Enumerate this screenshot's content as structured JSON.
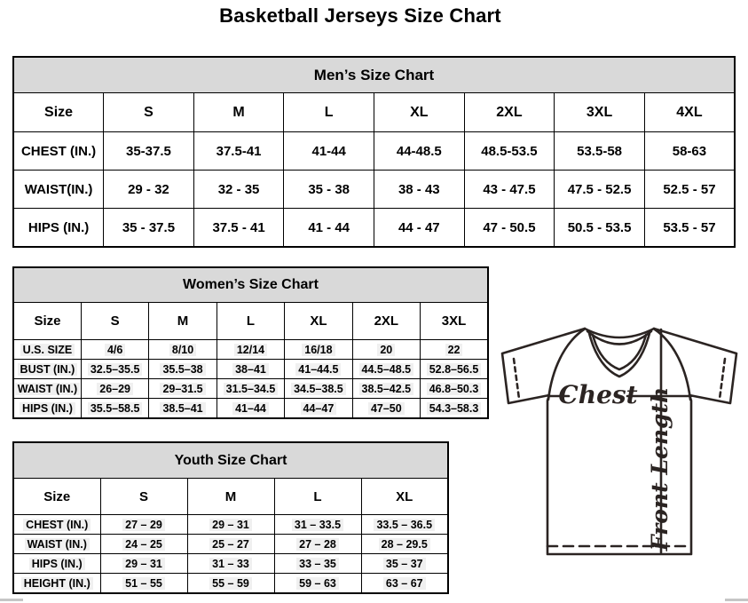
{
  "page": {
    "title": "Basketball Jerseys Size Chart"
  },
  "colors": {
    "header_band": "#d9d9d9",
    "table_border": "#000000",
    "diagram_stroke": "#2b2422",
    "highlight": "#f0f0f0"
  },
  "tables": {
    "mens": {
      "title": "Men’s Size Chart",
      "columns": [
        "Size",
        "S",
        "M",
        "L",
        "XL",
        "2XL",
        "3XL",
        "4XL"
      ],
      "rows": [
        [
          "CHEST (IN.)",
          "35-37.5",
          "37.5-41",
          "41-44",
          "44-48.5",
          "48.5-53.5",
          "53.5-58",
          "58-63"
        ],
        [
          "WAIST(IN.)",
          "29 - 32",
          "32 - 35",
          "35 - 38",
          "38 - 43",
          "43 - 47.5",
          "47.5 - 52.5",
          "52.5 - 57"
        ],
        [
          "HIPS (IN.)",
          "35 - 37.5",
          "37.5 - 41",
          "41 - 44",
          "44 - 47",
          "47 - 50.5",
          "50.5 - 53.5",
          "53.5 - 57"
        ]
      ]
    },
    "womens": {
      "title": "Women’s Size Chart",
      "columns": [
        "Size",
        "S",
        "M",
        "L",
        "XL",
        "2XL",
        "3XL"
      ],
      "rows": [
        [
          "U.S. SIZE",
          "4/6",
          "8/10",
          "12/14",
          "16/18",
          "20",
          "22"
        ],
        [
          "BUST (IN.)",
          "32.5–35.5",
          "35.5–38",
          "38–41",
          "41–44.5",
          "44.5–48.5",
          "52.8–56.5"
        ],
        [
          "WAIST (IN.)",
          "26–29",
          "29–31.5",
          "31.5–34.5",
          "34.5–38.5",
          "38.5–42.5",
          "46.8–50.3"
        ],
        [
          "HIPS (IN.)",
          "35.5–58.5",
          "38.5–41",
          "41–44",
          "44–47",
          "47–50",
          "54.3–58.3"
        ]
      ]
    },
    "youth": {
      "title": "Youth Size Chart",
      "columns": [
        "Size",
        "S",
        "M",
        "L",
        "XL"
      ],
      "rows": [
        [
          "CHEST (IN.)",
          "27 – 29",
          "29 – 31",
          "31 – 33.5",
          "33.5 – 36.5"
        ],
        [
          "WAIST (IN.)",
          "24 – 25",
          "25 – 27",
          "27 – 28",
          "28 – 29.5"
        ],
        [
          "HIPS (IN.)",
          "29 – 31",
          "31 – 33",
          "33 – 35",
          "35 – 37"
        ],
        [
          "HEIGHT (IN.)",
          "51 – 55",
          "55 – 59",
          "59 – 63",
          "63 – 67"
        ]
      ]
    }
  },
  "diagram": {
    "chest_label": "Chest",
    "front_length_label": "Front Length"
  }
}
